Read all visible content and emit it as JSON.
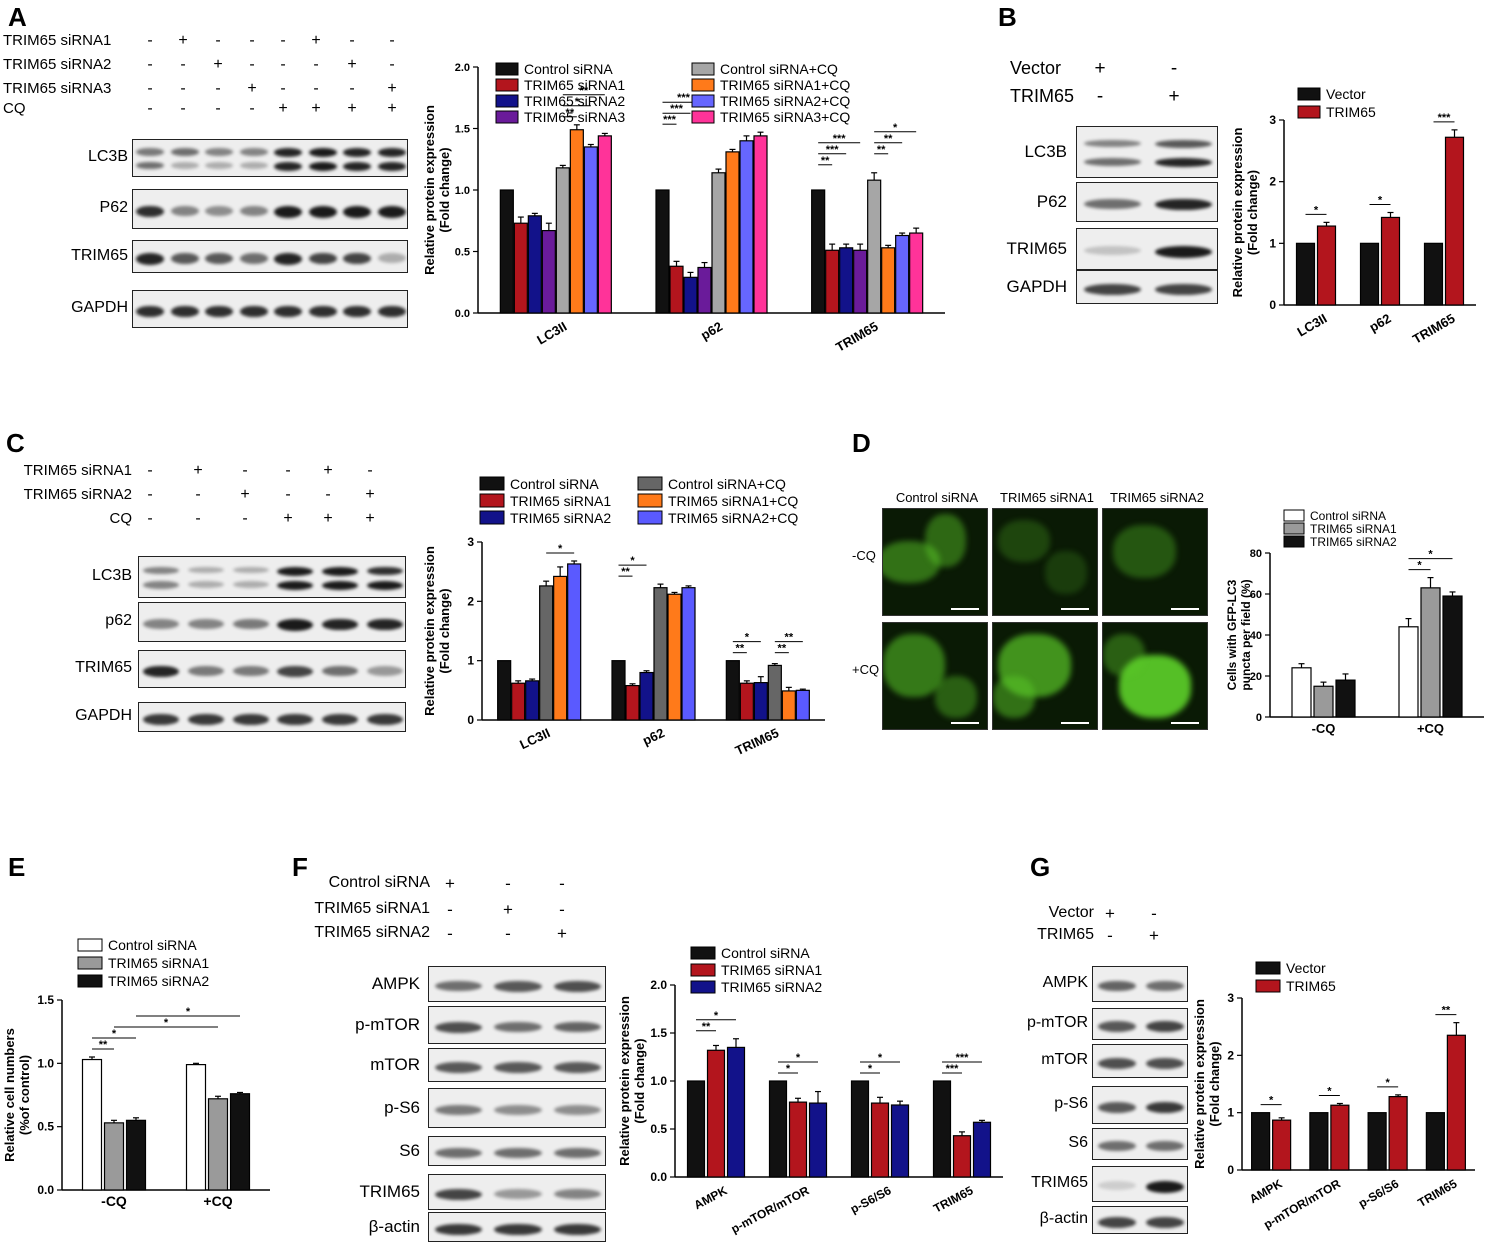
{
  "panels": {
    "A": {
      "label": "A",
      "rows": [
        {
          "name": "TRIM65 siRNA1",
          "signs": [
            "-",
            "+",
            "-",
            "-",
            "-",
            "+",
            "-",
            "-"
          ]
        },
        {
          "name": "TRIM65 siRNA2",
          "signs": [
            "-",
            "-",
            "+",
            "-",
            "-",
            "-",
            "+",
            "-"
          ]
        },
        {
          "name": "TRIM65 siRNA3",
          "signs": [
            "-",
            "-",
            "-",
            "+",
            "-",
            "-",
            "-",
            "+"
          ]
        },
        {
          "name": "CQ",
          "signs": [
            "-",
            "-",
            "-",
            "-",
            "+",
            "+",
            "+",
            "+"
          ]
        }
      ],
      "blots": [
        "LC3B",
        "P62",
        "TRIM65",
        "GAPDH"
      ]
    },
    "B": {
      "label": "B",
      "rows": [
        {
          "name": "Vector",
          "signs": [
            "+",
            "-"
          ]
        },
        {
          "name": "TRIM65",
          "signs": [
            "-",
            "+"
          ]
        }
      ],
      "blots": [
        "LC3B",
        "P62",
        "TRIM65",
        "GAPDH"
      ]
    },
    "C": {
      "label": "C",
      "rows": [
        {
          "name": "TRIM65 siRNA1",
          "signs": [
            "-",
            "+",
            "-",
            "-",
            "+",
            "-"
          ]
        },
        {
          "name": "TRIM65 siRNA2",
          "signs": [
            "-",
            "-",
            "+",
            "-",
            "-",
            "+"
          ]
        },
        {
          "name": "CQ",
          "signs": [
            "-",
            "-",
            "-",
            "+",
            "+",
            "+"
          ]
        }
      ],
      "blots": [
        "LC3B",
        "p62",
        "TRIM65",
        "GAPDH"
      ]
    },
    "D": {
      "label": "D",
      "columns": [
        "Control siRNA",
        "TRIM65 siRNA1",
        "TRIM65 siRNA2"
      ],
      "rows": [
        "-CQ",
        "+CQ"
      ]
    },
    "E": {
      "label": "E"
    },
    "F": {
      "label": "F",
      "rows": [
        {
          "name": "Control siRNA",
          "signs": [
            "+",
            "-",
            "-"
          ]
        },
        {
          "name": "TRIM65 siRNA1",
          "signs": [
            "-",
            "+",
            "-"
          ]
        },
        {
          "name": "TRIM65 siRNA2",
          "signs": [
            "-",
            "-",
            "+"
          ]
        }
      ],
      "blots": [
        "AMPK",
        "p-mTOR",
        "mTOR",
        "p-S6",
        "S6",
        "TRIM65",
        "β-actin"
      ]
    },
    "G": {
      "label": "G",
      "rows": [
        {
          "name": "Vector",
          "signs": [
            "+",
            "-"
          ]
        },
        {
          "name": "TRIM65",
          "signs": [
            "-",
            "+"
          ]
        }
      ],
      "blots": [
        "AMPK",
        "p-mTOR",
        "mTOR",
        "p-S6",
        "S6",
        "TRIM65",
        "β-actin"
      ]
    }
  },
  "colors": {
    "black": "#111111",
    "darkred": "#b3151d",
    "navy": "#12128a",
    "purple": "#6a1b9a",
    "gray": "#a6a6a6",
    "orange": "#ff7a1a",
    "periwinkle": "#6666ff",
    "pink": "#ff3399",
    "white": "#ffffff",
    "midgray": "#9a9a9a",
    "darkgray": "#666666",
    "blue": "#5a5aff"
  },
  "chart_data": [
    {
      "id": "A",
      "type": "bar",
      "ylabel": "Relative protein expression\n(Fold change)",
      "ylim": [
        0,
        2.0
      ],
      "yticks": [
        "0.0",
        "0.5",
        "1.0",
        "1.5",
        "2.0"
      ],
      "categories": [
        "LC3II",
        "p62",
        "TRIM65"
      ],
      "legend_columns": 2,
      "series": [
        {
          "name": "Control siRNA",
          "color": "#111111",
          "values": [
            1.0,
            1.0,
            1.0
          ],
          "errors": [
            0,
            0,
            0
          ]
        },
        {
          "name": "TRIM65 siRNA1",
          "color": "#b3151d",
          "values": [
            0.73,
            0.38,
            0.51
          ],
          "errors": [
            0.05,
            0.04,
            0.05
          ]
        },
        {
          "name": "TRIM65 siRNA2",
          "color": "#12128a",
          "values": [
            0.79,
            0.29,
            0.53
          ],
          "errors": [
            0.02,
            0.04,
            0.03
          ]
        },
        {
          "name": "TRIM65 siRNA3",
          "color": "#6a1b9a",
          "values": [
            0.67,
            0.37,
            0.51
          ],
          "errors": [
            0.06,
            0.04,
            0.05
          ]
        },
        {
          "name": "Control siRNA+CQ",
          "color": "#a6a6a6",
          "values": [
            1.18,
            1.14,
            1.08
          ],
          "errors": [
            0.02,
            0.03,
            0.06
          ]
        },
        {
          "name": "TRIM65 siRNA1+CQ",
          "color": "#ff7a1a",
          "values": [
            1.49,
            1.31,
            0.53
          ],
          "errors": [
            0.04,
            0.02,
            0.02
          ]
        },
        {
          "name": "TRIM65 siRNA2+CQ",
          "color": "#6666ff",
          "values": [
            1.35,
            1.4,
            0.63
          ],
          "errors": [
            0.02,
            0.04,
            0.02
          ]
        },
        {
          "name": "TRIM65 siRNA3+CQ",
          "color": "#ff3399",
          "values": [
            1.44,
            1.44,
            0.65
          ],
          "errors": [
            0.02,
            0.03,
            0.04
          ]
        }
      ],
      "sig": [
        {
          "g": 0,
          "a": 4,
          "b": 7,
          "t": "**",
          "lvl": 3
        },
        {
          "g": 0,
          "a": 4,
          "b": 6,
          "t": "*",
          "lvl": 2
        },
        {
          "g": 0,
          "a": 4,
          "b": 5,
          "t": "**",
          "lvl": 1
        },
        {
          "g": 1,
          "a": 0,
          "b": 3,
          "t": "***",
          "lvl": 3
        },
        {
          "g": 1,
          "a": 0,
          "b": 2,
          "t": "***",
          "lvl": 2
        },
        {
          "g": 1,
          "a": 0,
          "b": 1,
          "t": "***",
          "lvl": 1
        },
        {
          "g": 2,
          "a": 0,
          "b": 3,
          "t": "***",
          "lvl": 3
        },
        {
          "g": 2,
          "a": 0,
          "b": 2,
          "t": "***",
          "lvl": 2
        },
        {
          "g": 2,
          "a": 0,
          "b": 1,
          "t": "**",
          "lvl": 1
        },
        {
          "g": 2,
          "a": 4,
          "b": 7,
          "t": "*",
          "lvl": 4
        },
        {
          "g": 2,
          "a": 4,
          "b": 6,
          "t": "**",
          "lvl": 3
        },
        {
          "g": 2,
          "a": 4,
          "b": 5,
          "t": "**",
          "lvl": 2
        }
      ]
    },
    {
      "id": "B",
      "type": "bar",
      "ylabel": "Relative protein expression\n(Fold change)",
      "ylim": [
        0,
        3
      ],
      "yticks": [
        "0",
        "1",
        "2",
        "3"
      ],
      "categories": [
        "LC3II",
        "p62",
        "TRIM65"
      ],
      "legend_columns": 1,
      "series": [
        {
          "name": "Vector",
          "color": "#111111",
          "values": [
            1.0,
            1.0,
            1.0
          ],
          "errors": [
            0,
            0,
            0
          ]
        },
        {
          "name": "TRIM65",
          "color": "#b3151d",
          "values": [
            1.28,
            1.42,
            2.72
          ],
          "errors": [
            0.06,
            0.08,
            0.12
          ]
        }
      ],
      "sig": [
        {
          "g": 0,
          "a": 0,
          "b": 1,
          "t": "*",
          "lvl": 1
        },
        {
          "g": 1,
          "a": 0,
          "b": 1,
          "t": "*",
          "lvl": 1
        },
        {
          "g": 2,
          "a": 0,
          "b": 1,
          "t": "***",
          "lvl": 1
        }
      ]
    },
    {
      "id": "C",
      "type": "bar",
      "ylabel": "Relative protein expression\n(Fold change)",
      "ylim": [
        0,
        3
      ],
      "yticks": [
        "0",
        "1",
        "2",
        "3"
      ],
      "categories": [
        "LC3II",
        "p62",
        "TRIM65"
      ],
      "legend_columns": 2,
      "series": [
        {
          "name": "Control siRNA",
          "color": "#111111",
          "values": [
            1.0,
            1.0,
            1.0
          ],
          "errors": [
            0,
            0,
            0
          ]
        },
        {
          "name": "TRIM65 siRNA1",
          "color": "#b3151d",
          "values": [
            0.62,
            0.58,
            0.62
          ],
          "errors": [
            0.04,
            0.03,
            0.04
          ]
        },
        {
          "name": "TRIM65 siRNA2",
          "color": "#12128a",
          "values": [
            0.66,
            0.8,
            0.63
          ],
          "errors": [
            0.03,
            0.03,
            0.1
          ]
        },
        {
          "name": "Control siRNA+CQ",
          "color": "#666666",
          "values": [
            2.26,
            2.23,
            0.92
          ],
          "errors": [
            0.08,
            0.06,
            0.03
          ]
        },
        {
          "name": "TRIM65 siRNA1+CQ",
          "color": "#ff7a1a",
          "values": [
            2.42,
            2.12,
            0.49
          ],
          "errors": [
            0.16,
            0.03,
            0.06
          ]
        },
        {
          "name": "TRIM65 siRNA2+CQ",
          "color": "#5a5aff",
          "values": [
            2.63,
            2.23,
            0.5
          ],
          "errors": [
            0.05,
            0.03,
            0.02
          ]
        }
      ],
      "sig": [
        {
          "g": 0,
          "a": 3,
          "b": 5,
          "t": "*",
          "lvl": 1
        },
        {
          "g": 1,
          "a": 0,
          "b": 2,
          "t": "*",
          "lvl": 2
        },
        {
          "g": 1,
          "a": 0,
          "b": 1,
          "t": "**",
          "lvl": 1
        },
        {
          "g": 2,
          "a": 0,
          "b": 2,
          "t": "*",
          "lvl": 2
        },
        {
          "g": 2,
          "a": 0,
          "b": 1,
          "t": "**",
          "lvl": 1
        },
        {
          "g": 2,
          "a": 3,
          "b": 5,
          "t": "**",
          "lvl": 2
        },
        {
          "g": 2,
          "a": 3,
          "b": 4,
          "t": "**",
          "lvl": 1
        }
      ]
    },
    {
      "id": "D",
      "type": "bar",
      "ylabel": "Cells with GFP-LC3\npuncta per field (%)",
      "ylim": [
        0,
        80
      ],
      "yticks": [
        "0",
        "20",
        "40",
        "60",
        "80"
      ],
      "categories": [
        "-CQ",
        "+CQ"
      ],
      "legend_columns": 1,
      "series": [
        {
          "name": "Control siRNA",
          "color": "#ffffff",
          "values": [
            24,
            44
          ],
          "errors": [
            2,
            4
          ]
        },
        {
          "name": "TRIM65 siRNA1",
          "color": "#9a9a9a",
          "values": [
            15,
            63
          ],
          "errors": [
            2,
            5
          ]
        },
        {
          "name": "TRIM65 siRNA2",
          "color": "#111111",
          "values": [
            18,
            59
          ],
          "errors": [
            3,
            2
          ]
        }
      ],
      "sig": [
        {
          "g": 1,
          "a": 0,
          "b": 2,
          "t": "*",
          "lvl": 2
        },
        {
          "g": 1,
          "a": 0,
          "b": 1,
          "t": "*",
          "lvl": 1
        }
      ]
    },
    {
      "id": "E",
      "type": "bar",
      "ylabel": "Relative cell numbers\n(%of control)",
      "ylim": [
        0,
        1.5
      ],
      "yticks": [
        "0.0",
        "0.5",
        "1.0",
        "1.5"
      ],
      "categories": [
        "-CQ",
        "+CQ"
      ],
      "legend_columns": 1,
      "series": [
        {
          "name": "Control siRNA",
          "color": "#ffffff",
          "values": [
            1.03,
            0.99
          ],
          "errors": [
            0.02,
            0.01
          ]
        },
        {
          "name": "TRIM65 siRNA1",
          "color": "#9a9a9a",
          "values": [
            0.53,
            0.72
          ],
          "errors": [
            0.02,
            0.02
          ]
        },
        {
          "name": "TRIM65 siRNA2",
          "color": "#111111",
          "values": [
            0.55,
            0.76
          ],
          "errors": [
            0.02,
            0.01
          ]
        }
      ],
      "sig": [
        {
          "g": 0,
          "a": 0,
          "b": 1,
          "t": "**",
          "lvl": 1
        },
        {
          "g": 0,
          "a": 0,
          "b": 2,
          "t": "*",
          "lvl": 2
        },
        {
          "g": "x",
          "a": [
            0,
            1
          ],
          "b": [
            1,
            1
          ],
          "t": "*",
          "lvl": 3
        },
        {
          "g": "x",
          "a": [
            0,
            2
          ],
          "b": [
            1,
            2
          ],
          "t": "*",
          "lvl": 4
        }
      ]
    },
    {
      "id": "F",
      "type": "bar",
      "ylabel": "Relative protein expression\n(Fold change)",
      "ylim": [
        0,
        2.0
      ],
      "yticks": [
        "0.0",
        "0.5",
        "1.0",
        "1.5",
        "2.0"
      ],
      "categories": [
        "AMPK",
        "p-mTOR/mTOR",
        "p-S6/S6",
        "TRIM65"
      ],
      "legend_columns": 1,
      "series": [
        {
          "name": "Control siRNA",
          "color": "#111111",
          "values": [
            1.0,
            1.0,
            1.0,
            1.0
          ],
          "errors": [
            0,
            0,
            0,
            0
          ]
        },
        {
          "name": "TRIM65 siRNA1",
          "color": "#b3151d",
          "values": [
            1.32,
            0.78,
            0.77,
            0.43
          ],
          "errors": [
            0.05,
            0.04,
            0.06,
            0.04
          ]
        },
        {
          "name": "TRIM65 siRNA2",
          "color": "#12128a",
          "values": [
            1.35,
            0.77,
            0.75,
            0.57
          ],
          "errors": [
            0.09,
            0.12,
            0.04,
            0.02
          ]
        }
      ],
      "sig": [
        {
          "g": 0,
          "a": 0,
          "b": 2,
          "t": "*",
          "lvl": 2
        },
        {
          "g": 0,
          "a": 0,
          "b": 1,
          "t": "**",
          "lvl": 1
        },
        {
          "g": 1,
          "a": 0,
          "b": 2,
          "t": "*",
          "lvl": 2
        },
        {
          "g": 1,
          "a": 0,
          "b": 1,
          "t": "*",
          "lvl": 1
        },
        {
          "g": 2,
          "a": 0,
          "b": 2,
          "t": "*",
          "lvl": 2
        },
        {
          "g": 2,
          "a": 0,
          "b": 1,
          "t": "*",
          "lvl": 1
        },
        {
          "g": 3,
          "a": 0,
          "b": 2,
          "t": "***",
          "lvl": 2
        },
        {
          "g": 3,
          "a": 0,
          "b": 1,
          "t": "***",
          "lvl": 1
        }
      ]
    },
    {
      "id": "G",
      "type": "bar",
      "ylabel": "Relative protein expression\n(Fold change)",
      "ylim": [
        0,
        3
      ],
      "yticks": [
        "0",
        "1",
        "2",
        "3"
      ],
      "categories": [
        "AMPK",
        "p-mTOR/mTOR",
        "p-S6/S6",
        "TRIM65"
      ],
      "legend_columns": 1,
      "series": [
        {
          "name": "Vector",
          "color": "#111111",
          "values": [
            1.0,
            1.0,
            1.0,
            1.0
          ],
          "errors": [
            0,
            0,
            0,
            0
          ]
        },
        {
          "name": "TRIM65",
          "color": "#b3151d",
          "values": [
            0.87,
            1.13,
            1.28,
            2.35
          ],
          "errors": [
            0.04,
            0.03,
            0.03,
            0.22
          ]
        }
      ],
      "sig": [
        {
          "g": 0,
          "a": 0,
          "b": 1,
          "t": "*",
          "lvl": 1
        },
        {
          "g": 1,
          "a": 0,
          "b": 1,
          "t": "*",
          "lvl": 1
        },
        {
          "g": 2,
          "a": 0,
          "b": 1,
          "t": "*",
          "lvl": 1
        },
        {
          "g": 3,
          "a": 0,
          "b": 1,
          "t": "**",
          "lvl": 1
        }
      ]
    }
  ]
}
